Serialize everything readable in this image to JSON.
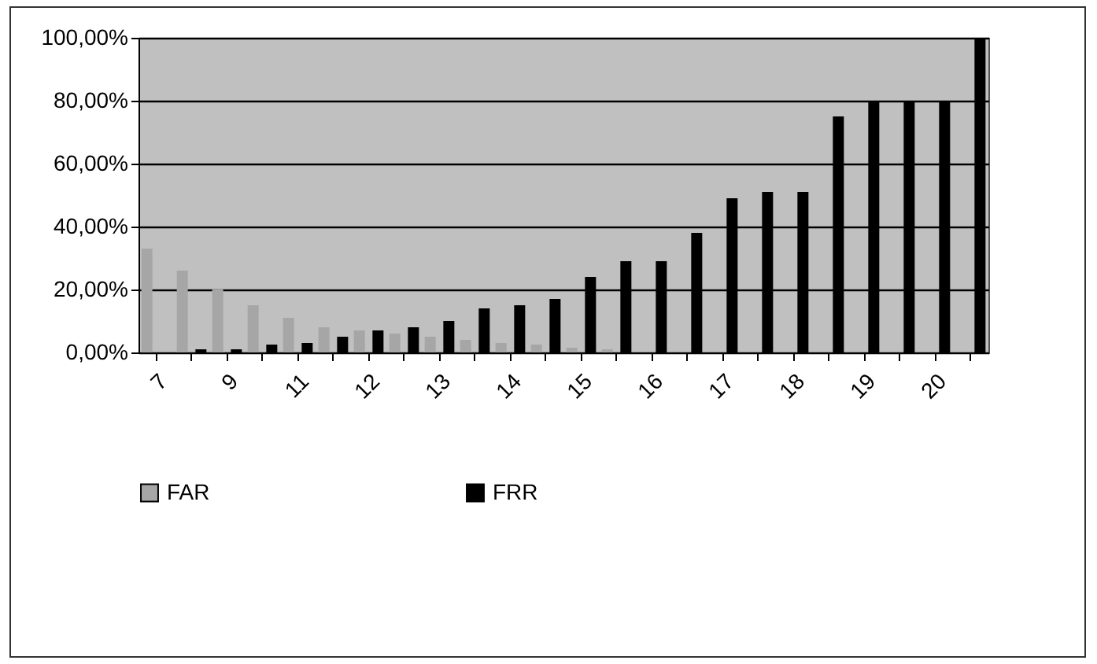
{
  "chart_data": {
    "type": "bar",
    "categories": [
      "7",
      null,
      "9",
      null,
      "11",
      null,
      "12",
      null,
      "13",
      null,
      "14",
      null,
      "15",
      null,
      "16",
      null,
      "17",
      null,
      "18",
      null,
      "19",
      null,
      "20",
      null
    ],
    "series": [
      {
        "name": "FAR",
        "color": "#a6a6a6",
        "values": [
          33,
          26,
          20,
          15,
          11,
          8,
          7,
          6,
          5,
          4,
          3,
          2.5,
          1.5,
          1,
          null,
          null,
          null,
          null,
          null,
          null,
          null,
          null,
          null,
          null
        ]
      },
      {
        "name": "FRR",
        "color": "#000000",
        "values": [
          0,
          1,
          1,
          2.5,
          3,
          5,
          7,
          8,
          10,
          14,
          15,
          17,
          24,
          29,
          29,
          38,
          49,
          51,
          51,
          75,
          80,
          80,
          80,
          100
        ]
      }
    ],
    "ylim": [
      0,
      100
    ],
    "yticks": [
      {
        "value": 0,
        "label": "0,00%"
      },
      {
        "value": 20,
        "label": "20,00%"
      },
      {
        "value": 40,
        "label": "40,00%"
      },
      {
        "value": 60,
        "label": "60,00%"
      },
      {
        "value": 80,
        "label": "80,00%"
      },
      {
        "value": 100,
        "label": "100,00%"
      }
    ],
    "grid": "y",
    "legend": "bottom"
  }
}
